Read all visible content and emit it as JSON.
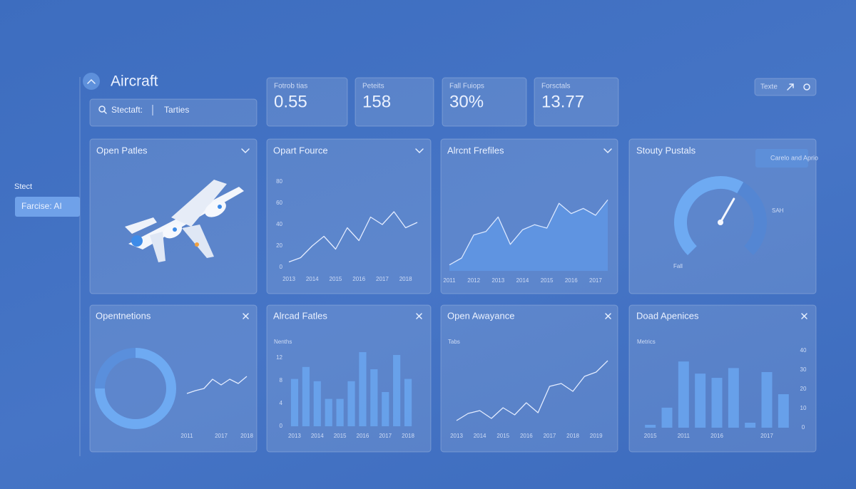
{
  "header": {
    "title": "Aircraft",
    "search_label": "Stectaft:",
    "search_value": "Tarties",
    "button": "Texte"
  },
  "sidebar": {
    "heading": "Stect",
    "item": "Farcise: AI"
  },
  "kpis": [
    {
      "label": "Fotrob tias",
      "value": 0.55
    },
    {
      "label": "Peteits",
      "value": 158
    },
    {
      "label": "Fall Fuiops",
      "value": "30%"
    },
    {
      "label": "Forsctals",
      "value": 13.77
    }
  ],
  "illustration_panel": {
    "title": "Open Patles"
  },
  "chart_data": [
    {
      "type": "line",
      "title": "Opart Fource",
      "color": "#e3ecff",
      "categories": [
        "2013",
        null,
        "2014",
        null,
        "2015",
        null,
        "2016",
        null,
        "2017",
        null,
        "2018",
        null
      ],
      "values": [
        5,
        9,
        20,
        29,
        17,
        37,
        25,
        47,
        40,
        52,
        37,
        42
      ],
      "ylim": [
        0,
        80
      ],
      "yticks": [
        0,
        20,
        40,
        60,
        80
      ]
    },
    {
      "type": "area",
      "title": "Alrcnt Frefiles",
      "color": "#5f97e4",
      "categories": [
        "2011",
        null,
        "2012",
        null,
        "2013",
        null,
        "2014",
        null,
        "2015",
        null,
        "2016",
        null,
        "2017",
        null
      ],
      "values": [
        7,
        15,
        42,
        46,
        63,
        31,
        48,
        54,
        50,
        79,
        67,
        73,
        65,
        83
      ],
      "ylim": [
        0,
        100
      ]
    },
    {
      "type": "gauge",
      "title": "Stouty Pustals",
      "color": "#6eaaf2",
      "value": 61,
      "ylim": [
        0,
        100
      ],
      "badge": "Carelo and Aprio",
      "annotations": [
        "SAH",
        "Fall"
      ]
    },
    {
      "type": "donut",
      "title": "Opentnetions",
      "colors": [
        "#6eaaf2",
        "#5a8fdc"
      ],
      "values": [
        75,
        25
      ]
    },
    {
      "type": "line",
      "color": "#e3ecff",
      "categories": [
        "2011",
        null,
        null,
        null,
        "2017",
        null,
        null,
        "2018"
      ],
      "values": [
        48,
        52,
        55,
        68,
        60,
        68,
        62,
        72
      ],
      "ylim": [
        0,
        100
      ]
    },
    {
      "type": "bar",
      "title": "Alrcad Fatles",
      "subtitle": "Nenths",
      "color": "#6aa6f0",
      "categories": [
        "2013",
        null,
        "2014",
        null,
        "2015",
        null,
        "2016",
        null,
        "2017",
        null,
        "2018"
      ],
      "values": [
        8.3,
        10.4,
        7.9,
        4.8,
        4.8,
        7.9,
        13,
        10,
        6,
        12.5,
        8.3
      ],
      "ylim": [
        0,
        13.5
      ],
      "yticks": [
        0,
        4,
        8,
        12
      ]
    },
    {
      "type": "line",
      "title": "Open Awayance",
      "subtitle": "Tabs",
      "color": "#e3ecff",
      "categories": [
        "2013",
        null,
        "2014",
        null,
        "2015",
        null,
        "2016",
        null,
        "2017",
        null,
        "2018",
        null,
        "2019",
        null
      ],
      "values": [
        20,
        30,
        34,
        23,
        38,
        28,
        45,
        31,
        68,
        72,
        61,
        82,
        88,
        104
      ],
      "ylim": [
        0,
        120
      ]
    },
    {
      "type": "bar",
      "title": "Doad Apenices",
      "subtitle": "Metrics",
      "color": "#6aa6f0",
      "categories": [
        "2015",
        null,
        "2011",
        null,
        "2016",
        null,
        null,
        "2017",
        null
      ],
      "values": [
        1.5,
        10.4,
        34.4,
        28.1,
        25.9,
        31,
        2.6,
        28.9,
        17.4
      ],
      "ylim": [
        0,
        40
      ],
      "yticks": [
        0,
        10,
        20,
        30,
        40
      ]
    }
  ]
}
